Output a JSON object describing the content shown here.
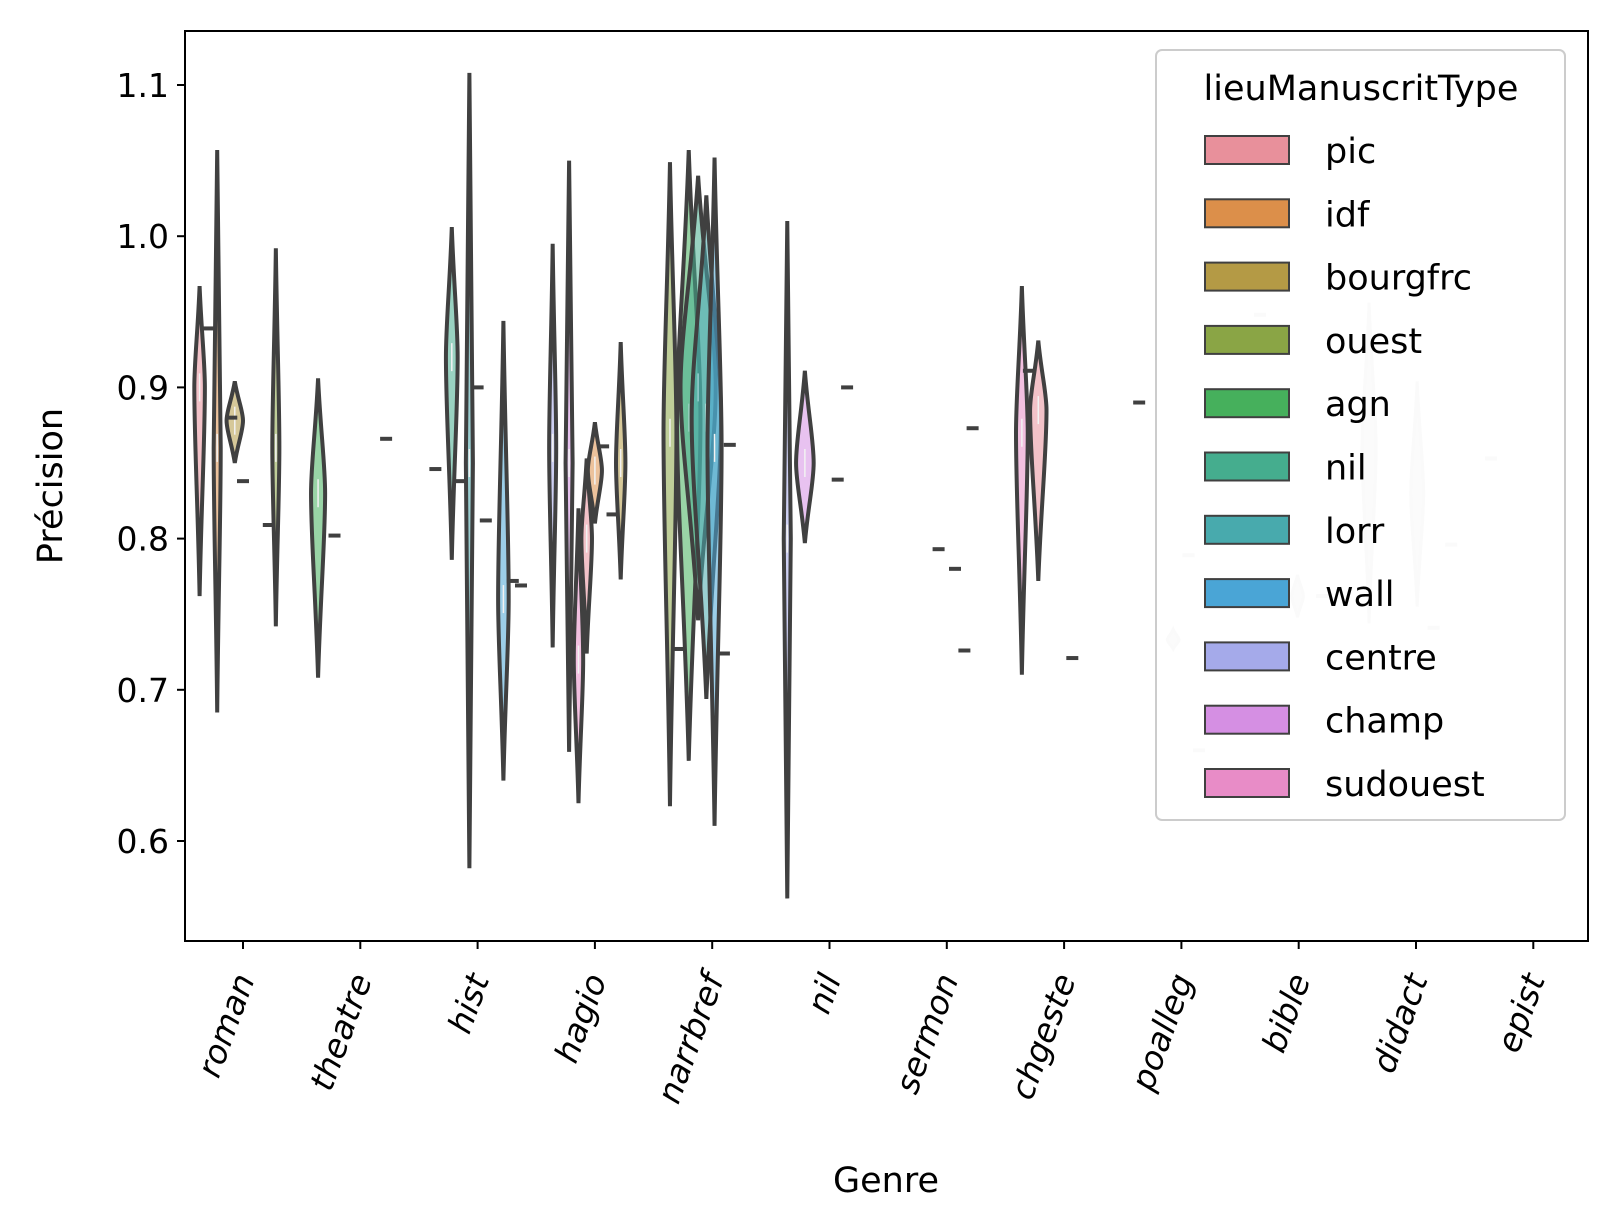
{
  "chart_data": {
    "type": "violin",
    "xlabel": "Genre",
    "ylabel": "Précision",
    "ylim": [
      0.53,
      1.135
    ],
    "yticks": [
      0.6,
      0.7,
      0.8,
      0.9,
      1.0,
      1.1
    ],
    "ytick_labels": [
      "0.6",
      "0.7",
      "0.8",
      "0.9",
      "1.0",
      "1.1"
    ],
    "categories": [
      "roman",
      "theatre",
      "hist",
      "hagio",
      "narrbref",
      "nil",
      "sermon",
      "chgeste",
      "poalleg",
      "bible",
      "didact",
      "epist"
    ],
    "legend": {
      "title": "lieuManuscritType",
      "placement": "top-right",
      "entries": [
        {
          "name": "pic",
          "color": "#e8909b"
        },
        {
          "name": "idf",
          "color": "#dc8f4a"
        },
        {
          "name": "bourgfrc",
          "color": "#b49a45"
        },
        {
          "name": "ouest",
          "color": "#8aa545"
        },
        {
          "name": "agn",
          "color": "#46b05c"
        },
        {
          "name": "nil",
          "color": "#45ad8e"
        },
        {
          "name": "lorr",
          "color": "#48aaad"
        },
        {
          "name": "wall",
          "color": "#4aa5d6"
        },
        {
          "name": "centre",
          "color": "#a5aaea"
        },
        {
          "name": "champ",
          "color": "#d58fe3"
        },
        {
          "name": "sudouest",
          "color": "#e88cc7"
        }
      ]
    },
    "violins": [
      {
        "cat": "roman",
        "offset": -0.37,
        "min": 0.762,
        "max": 0.967,
        "mode": 0.9,
        "width": 0.09
      },
      {
        "cat": "roman",
        "offset": -0.22,
        "min": 0.685,
        "max": 1.057,
        "mode": 0.86,
        "width": 0.06
      },
      {
        "cat": "roman",
        "offset": -0.07,
        "min": 0.85,
        "max": 0.904,
        "mode": 0.878,
        "width": 0.14
      },
      {
        "cat": "roman",
        "offset": 0.28,
        "min": 0.742,
        "max": 0.992,
        "mode": 0.86,
        "width": 0.06
      },
      {
        "cat": "theatre",
        "offset": -0.36,
        "min": 0.708,
        "max": 0.906,
        "mode": 0.83,
        "width": 0.12
      },
      {
        "cat": "hist",
        "offset": -0.22,
        "min": 0.786,
        "max": 1.006,
        "mode": 0.92,
        "width": 0.1
      },
      {
        "cat": "hist",
        "offset": -0.07,
        "min": 0.582,
        "max": 1.108,
        "mode": 0.85,
        "width": 0.06
      },
      {
        "cat": "hist",
        "offset": 0.22,
        "min": 0.64,
        "max": 0.944,
        "mode": 0.76,
        "width": 0.09
      },
      {
        "cat": "hagio",
        "offset": -0.36,
        "min": 0.728,
        "max": 0.995,
        "mode": 0.86,
        "width": 0.06
      },
      {
        "cat": "hagio",
        "offset": -0.22,
        "min": 0.659,
        "max": 1.05,
        "mode": 0.85,
        "width": 0.06
      },
      {
        "cat": "hagio",
        "offset": -0.14,
        "min": 0.625,
        "max": 0.82,
        "mode": 0.72,
        "width": 0.08
      },
      {
        "cat": "hagio",
        "offset": -0.07,
        "min": 0.724,
        "max": 0.853,
        "mode": 0.8,
        "width": 0.09
      },
      {
        "cat": "hagio",
        "offset": 0.0,
        "min": 0.81,
        "max": 0.877,
        "mode": 0.845,
        "width": 0.12
      },
      {
        "cat": "hagio",
        "offset": 0.22,
        "min": 0.773,
        "max": 0.93,
        "mode": 0.85,
        "width": 0.08
      },
      {
        "cat": "narrbref",
        "offset": -0.36,
        "min": 0.623,
        "max": 1.049,
        "mode": 0.87,
        "width": 0.11
      },
      {
        "cat": "narrbref",
        "offset": -0.2,
        "min": 0.653,
        "max": 1.057,
        "mode": 0.88,
        "width": 0.2
      },
      {
        "cat": "narrbref",
        "offset": -0.12,
        "min": 0.746,
        "max": 1.04,
        "mode": 0.9,
        "width": 0.3
      },
      {
        "cat": "narrbref",
        "offset": -0.05,
        "min": 0.694,
        "max": 1.027,
        "mode": 0.88,
        "width": 0.25
      },
      {
        "cat": "narrbref",
        "offset": 0.02,
        "min": 0.61,
        "max": 1.052,
        "mode": 0.86,
        "width": 0.12
      },
      {
        "cat": "nil",
        "offset": -0.36,
        "min": 0.562,
        "max": 1.01,
        "mode": 0.8,
        "width": 0.06
      },
      {
        "cat": "nil",
        "offset": -0.21,
        "min": 0.797,
        "max": 0.911,
        "mode": 0.85,
        "width": 0.15
      },
      {
        "cat": "chgeste",
        "offset": -0.36,
        "min": 0.71,
        "max": 0.967,
        "mode": 0.87,
        "width": 0.1
      },
      {
        "cat": "chgeste",
        "offset": -0.22,
        "min": 0.772,
        "max": 0.931,
        "mode": 0.885,
        "width": 0.14
      }
    ],
    "faded_violins": [
      {
        "cat": "bible",
        "offset": 0.6,
        "min": 0.744,
        "max": 0.956,
        "mode": 0.86,
        "width": 0.12
      },
      {
        "cat": "didact",
        "offset": 0.01,
        "min": 0.755,
        "max": 0.904,
        "mode": 0.83,
        "width": 0.11
      },
      {
        "cat": "bible",
        "offset": -0.01,
        "min": 0.748,
        "max": 0.776,
        "mode": 0.762,
        "width": 0.1
      },
      {
        "cat": "poalleg",
        "offset": -0.07,
        "min": 0.727,
        "max": 0.74,
        "mode": 0.733,
        "width": 0.1
      }
    ],
    "single_points": [
      {
        "cat": "roman",
        "offset": -0.3,
        "value": 0.939
      },
      {
        "cat": "roman",
        "offset": -0.1,
        "value": 0.88
      },
      {
        "cat": "roman",
        "offset": 0.0,
        "value": 0.838
      },
      {
        "cat": "roman",
        "offset": 0.22,
        "value": 0.809
      },
      {
        "cat": "theatre",
        "offset": -0.22,
        "value": 0.802
      },
      {
        "cat": "theatre",
        "offset": 0.22,
        "value": 0.866
      },
      {
        "cat": "hist",
        "offset": -0.36,
        "value": 0.846
      },
      {
        "cat": "hist",
        "offset": -0.15,
        "value": 0.838
      },
      {
        "cat": "hist",
        "offset": 0.0,
        "value": 0.9
      },
      {
        "cat": "hist",
        "offset": 0.07,
        "value": 0.812
      },
      {
        "cat": "hist",
        "offset": 0.3,
        "value": 0.772
      },
      {
        "cat": "hist",
        "offset": 0.37,
        "value": 0.769
      },
      {
        "cat": "hagio",
        "offset": 0.07,
        "value": 0.861
      },
      {
        "cat": "hagio",
        "offset": 0.15,
        "value": 0.816
      },
      {
        "cat": "narrbref",
        "offset": -0.28,
        "value": 0.727
      },
      {
        "cat": "narrbref",
        "offset": 0.1,
        "value": 0.724
      },
      {
        "cat": "narrbref",
        "offset": 0.15,
        "value": 0.862
      },
      {
        "cat": "nil",
        "offset": 0.07,
        "value": 0.839
      },
      {
        "cat": "nil",
        "offset": 0.15,
        "value": 0.9
      },
      {
        "cat": "sermon",
        "offset": -0.07,
        "value": 0.793
      },
      {
        "cat": "sermon",
        "offset": 0.07,
        "value": 0.78
      },
      {
        "cat": "sermon",
        "offset": 0.15,
        "value": 0.726
      },
      {
        "cat": "sermon",
        "offset": 0.22,
        "value": 0.873
      },
      {
        "cat": "chgeste",
        "offset": -0.3,
        "value": 0.911
      },
      {
        "cat": "chgeste",
        "offset": 0.07,
        "value": 0.721
      },
      {
        "cat": "poalleg",
        "offset": -0.36,
        "value": 0.89
      }
    ],
    "faded_points": [
      {
        "cat": "poalleg",
        "offset": 0.06,
        "value": 0.789
      },
      {
        "cat": "poalleg",
        "offset": 0.67,
        "value": 0.948
      },
      {
        "cat": "poalleg",
        "offset": 0.15,
        "value": 0.66
      },
      {
        "cat": "bible",
        "offset": 0.2,
        "value": 0.762
      },
      {
        "cat": "didact",
        "offset": 0.15,
        "value": 0.741
      },
      {
        "cat": "didact",
        "offset": 0.3,
        "value": 0.796
      },
      {
        "cat": "epist",
        "offset": -0.36,
        "value": 0.853
      }
    ]
  }
}
